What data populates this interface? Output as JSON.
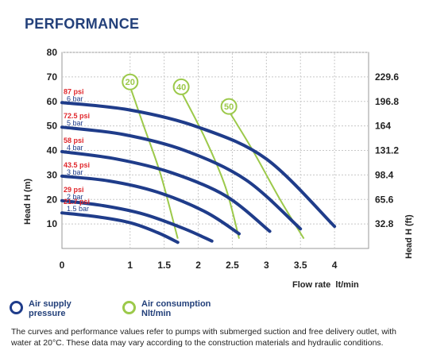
{
  "page": {
    "title": "PERFORMANCE"
  },
  "colors": {
    "pressure": "#1f3c8a",
    "air": "#9cc94a",
    "pressure_label": "#e0262b",
    "text": "#222222",
    "title": "#23407a"
  },
  "chart_data": {
    "type": "line",
    "xlabel": "Flow rate  lt/min",
    "ylabel": "Head H (m)",
    "y2label": "Head H (ft)",
    "xlim": [
      0,
      4.5
    ],
    "ylim": [
      0,
      80
    ],
    "x_ticks": [
      "0",
      "1",
      "1.5",
      "2",
      "2.5",
      "3",
      "3.5",
      "4"
    ],
    "x_tick_values": [
      0,
      1,
      1.5,
      2,
      2.5,
      3,
      3.5,
      4
    ],
    "y_ticks": [
      10,
      20,
      30,
      40,
      50,
      60,
      70,
      80
    ],
    "y2_ticks": [
      {
        "label": "32.8",
        "value": 10
      },
      {
        "label": "65.6",
        "value": 20
      },
      {
        "label": "98.4",
        "value": 30
      },
      {
        "label": "131.2",
        "value": 40
      },
      {
        "label": "164",
        "value": 50
      },
      {
        "label": "196.8",
        "value": 60
      },
      {
        "label": "229.6",
        "value": 70
      }
    ],
    "pressure_series": [
      {
        "psi": "21.7 psi",
        "bar": "1.5 bar",
        "points": [
          [
            0,
            14.5
          ],
          [
            0.5,
            13
          ],
          [
            1.0,
            10.5
          ],
          [
            1.4,
            6.5
          ],
          [
            1.7,
            2.5
          ]
        ]
      },
      {
        "psi": "29 psi",
        "bar": "2 bar",
        "points": [
          [
            0,
            19.5
          ],
          [
            0.6,
            17.5
          ],
          [
            1.2,
            14
          ],
          [
            1.8,
            8
          ],
          [
            2.2,
            3
          ]
        ]
      },
      {
        "psi": "43.5 psi",
        "bar": "3 bar",
        "points": [
          [
            0,
            29.5
          ],
          [
            0.7,
            27.5
          ],
          [
            1.4,
            23
          ],
          [
            2.1,
            15
          ],
          [
            2.6,
            6
          ]
        ]
      },
      {
        "psi": "58 psi",
        "bar": "4 bar",
        "points": [
          [
            0,
            39.5
          ],
          [
            0.8,
            36.5
          ],
          [
            1.6,
            31
          ],
          [
            2.4,
            21.5
          ],
          [
            3.05,
            7
          ]
        ]
      },
      {
        "psi": "72.5 psi",
        "bar": "5 bar",
        "points": [
          [
            0,
            49.5
          ],
          [
            0.9,
            46.5
          ],
          [
            1.8,
            40
          ],
          [
            2.7,
            28
          ],
          [
            3.5,
            8
          ]
        ]
      },
      {
        "psi": "87 psi",
        "bar": "6 bar",
        "points": [
          [
            0,
            59.5
          ],
          [
            1.0,
            56.5
          ],
          [
            2.0,
            49.5
          ],
          [
            3.0,
            36.5
          ],
          [
            4.0,
            9
          ]
        ]
      }
    ],
    "air_series": [
      {
        "name": "20",
        "points": [
          [
            1.0,
            66
          ],
          [
            1.2,
            50
          ],
          [
            1.45,
            30
          ],
          [
            1.7,
            4
          ]
        ]
      },
      {
        "name": "40",
        "points": [
          [
            1.75,
            64
          ],
          [
            2.1,
            45
          ],
          [
            2.4,
            25
          ],
          [
            2.6,
            4
          ]
        ]
      },
      {
        "name": "50",
        "points": [
          [
            2.45,
            56
          ],
          [
            2.8,
            40
          ],
          [
            3.2,
            20
          ],
          [
            3.55,
            4
          ]
        ]
      }
    ]
  },
  "legend": {
    "pressure": {
      "line1": "Air supply",
      "line2": "pressure"
    },
    "air": {
      "line1": "Air consumption",
      "line2": "Nlt/min"
    }
  },
  "note": "The curves and performance values refer to pumps with submerged suction and free delivery outlet, with water at 20°C. These data may vary according to the construction materials and hydraulic conditions."
}
